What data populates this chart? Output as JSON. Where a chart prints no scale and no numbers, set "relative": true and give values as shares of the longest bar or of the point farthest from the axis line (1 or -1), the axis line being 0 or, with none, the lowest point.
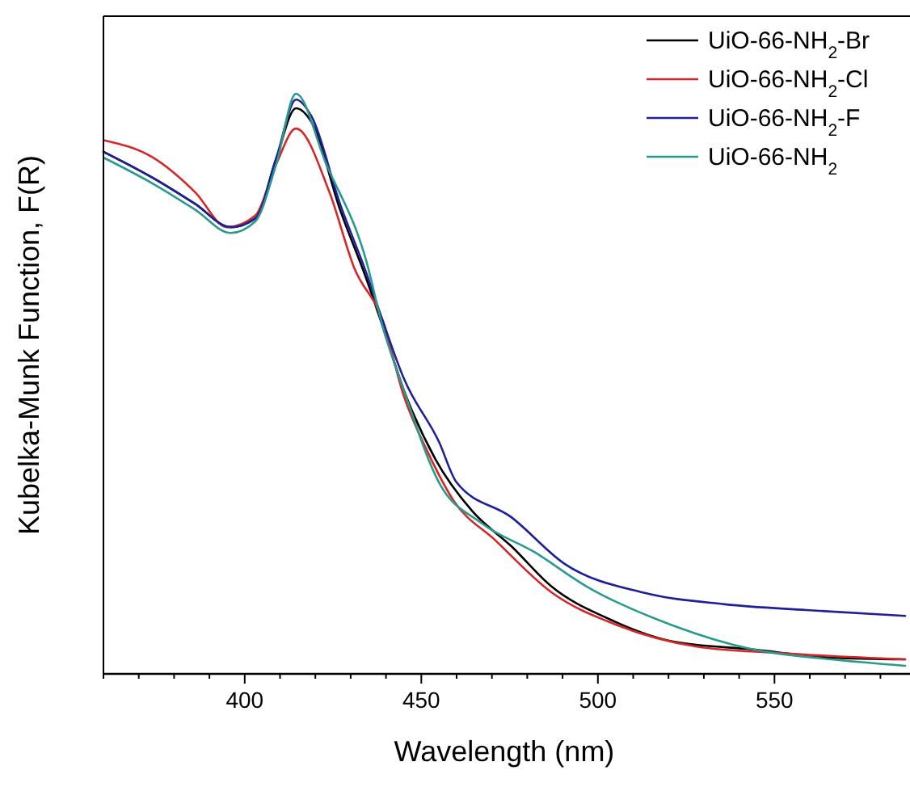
{
  "chart_data": {
    "type": "line",
    "xlabel": "Wavelength (nm)",
    "ylabel": "Kubelka-Munk Function, F(R)",
    "relative": true,
    "xlim": [
      360,
      587
    ],
    "xticks": [
      {
        "value": 360,
        "label": null
      },
      {
        "value": 370,
        "label": null
      },
      {
        "value": 380,
        "label": null
      },
      {
        "value": 390,
        "label": null
      },
      400,
      {
        "value": 410,
        "label": null
      },
      {
        "value": 420,
        "label": null
      },
      {
        "value": 430,
        "label": null
      },
      {
        "value": 440,
        "label": null
      },
      450,
      {
        "value": 460,
        "label": null
      },
      {
        "value": 470,
        "label": null
      },
      {
        "value": 480,
        "label": null
      },
      {
        "value": 490,
        "label": null
      },
      500,
      {
        "value": 510,
        "label": null
      },
      {
        "value": 520,
        "label": null
      },
      {
        "value": 530,
        "label": null
      },
      {
        "value": 540,
        "label": null
      },
      550,
      {
        "value": 560,
        "label": null
      },
      {
        "value": 570,
        "label": null
      },
      {
        "value": 580,
        "label": null
      }
    ],
    "legend": "top right",
    "grid": false,
    "line_style": "solid",
    "series": [
      {
        "name": "UiO-66-NH$_{2}$-Br",
        "color": "#000000",
        "x": [
          360,
          374,
          386,
          396,
          403,
          409,
          414.5,
          419,
          427,
          434.5,
          439,
          445,
          454,
          464.5,
          475.5,
          487,
          503,
          521,
          544,
          566,
          587
        ],
        "values": [
          0.9,
          0.855,
          0.81,
          0.77,
          0.785,
          0.89,
          0.975,
          0.95,
          0.8,
          0.68,
          0.6,
          0.49,
          0.37,
          0.28,
          0.22,
          0.15,
          0.095,
          0.056,
          0.042,
          0.028,
          0.025
        ]
      },
      {
        "name": "UiO-66-NH$_{2}$-Cl",
        "color": "#d62728",
        "x": [
          360,
          374,
          386,
          395,
          403,
          409,
          414.5,
          424,
          431,
          439,
          445,
          452,
          459,
          471,
          487,
          505.5,
          528,
          551,
          587
        ],
        "values": [
          0.92,
          0.89,
          0.83,
          0.77,
          0.79,
          0.88,
          0.94,
          0.83,
          0.7,
          0.61,
          0.48,
          0.38,
          0.3,
          0.23,
          0.14,
          0.084,
          0.047,
          0.036,
          0.025
        ]
      },
      {
        "name": "UiO-66-NH$_{2}$-F",
        "color": "#1f1f9a",
        "x": [
          360,
          374,
          386,
          396,
          403,
          409,
          414.5,
          419,
          427,
          434.5,
          439,
          445,
          455,
          460,
          475.5,
          490.5,
          513,
          536,
          559,
          587
        ],
        "values": [
          0.9,
          0.855,
          0.81,
          0.77,
          0.785,
          0.89,
          0.99,
          0.96,
          0.81,
          0.69,
          0.61,
          0.51,
          0.4,
          0.33,
          0.27,
          0.19,
          0.14,
          0.12,
          0.11,
          0.1
        ]
      },
      {
        "name": "UiO-66-NH$_{2}$",
        "color": "#2a9a8c",
        "x": [
          360,
          374,
          386,
          396,
          403,
          409,
          414.5,
          423,
          434.5,
          439,
          445,
          455,
          467,
          482,
          497,
          521,
          544,
          566,
          587
        ],
        "values": [
          0.89,
          0.845,
          0.8,
          0.76,
          0.78,
          0.88,
          1.0,
          0.88,
          0.71,
          0.6,
          0.49,
          0.33,
          0.26,
          0.21,
          0.15,
          0.084,
          0.042,
          0.025,
          0.014
        ]
      }
    ]
  }
}
